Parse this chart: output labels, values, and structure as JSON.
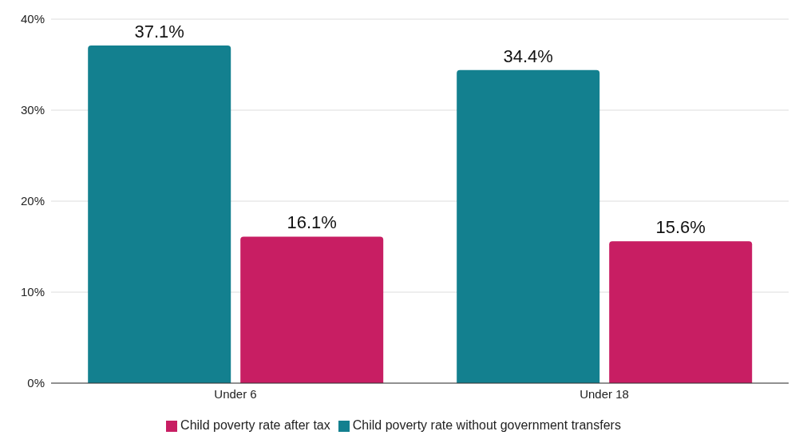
{
  "chart_data": {
    "type": "bar",
    "categories": [
      "Under 6",
      "Under 18"
    ],
    "series": [
      {
        "name": "Child poverty rate without government transfers",
        "color": "#13808f",
        "values": [
          37.1,
          34.4
        ],
        "value_labels": [
          "37.1%",
          "34.4%"
        ]
      },
      {
        "name": "Child poverty rate after tax",
        "color": "#c81e63",
        "values": [
          16.1,
          15.6
        ],
        "value_labels": [
          "16.1%",
          "15.6%"
        ]
      }
    ],
    "ylim": [
      0,
      40
    ],
    "yticks": [
      {
        "value": 0,
        "label": "0%"
      },
      {
        "value": 10,
        "label": "10%"
      },
      {
        "value": 20,
        "label": "20%"
      },
      {
        "value": 30,
        "label": "30%"
      },
      {
        "value": 40,
        "label": "40%"
      }
    ],
    "grid": "y",
    "legend": "bottom"
  }
}
